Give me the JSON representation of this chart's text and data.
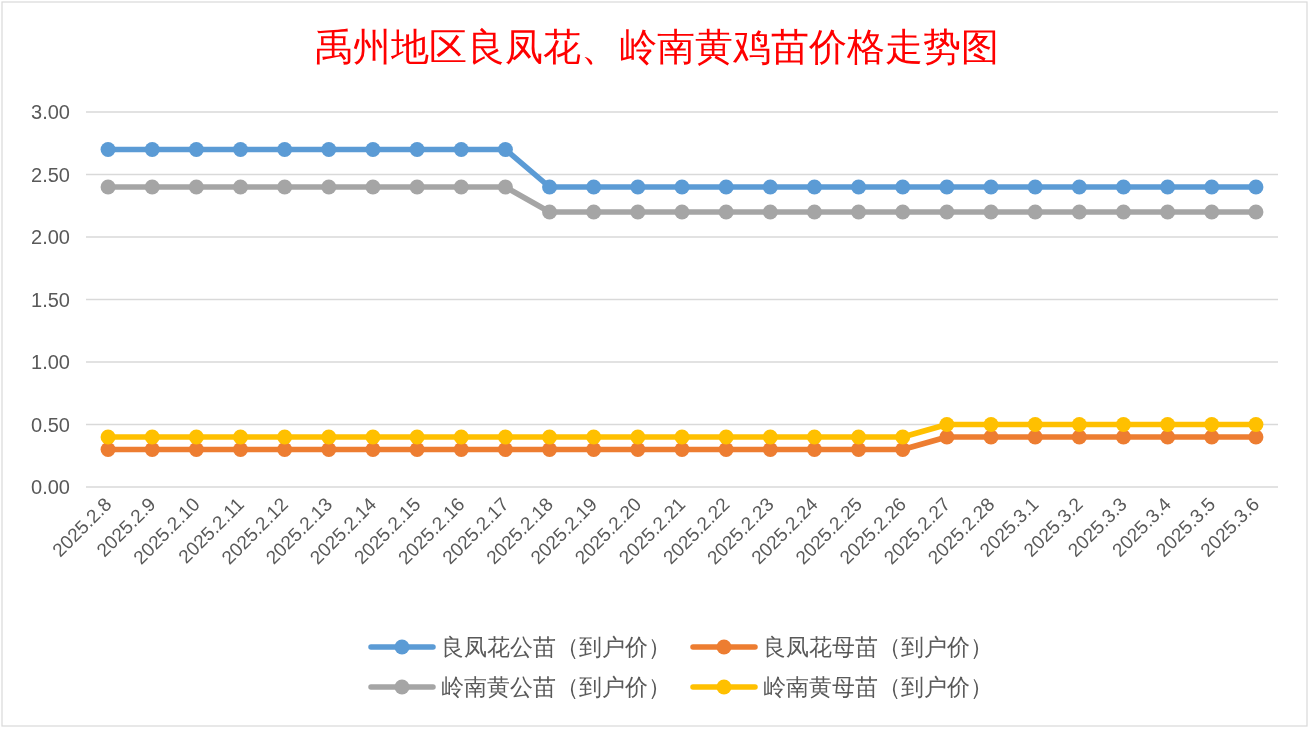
{
  "chart_data": {
    "type": "line",
    "title": "禹州地区良凤花、岭南黄鸡苗价格走势图",
    "categories": [
      "2025.2.8",
      "2025.2.9",
      "2025.2.10",
      "2025.2.11",
      "2025.2.12",
      "2025.2.13",
      "2025.2.14",
      "2025.2.15",
      "2025.2.16",
      "2025.2.17",
      "2025.2.18",
      "2025.2.19",
      "2025.2.20",
      "2025.2.21",
      "2025.2.22",
      "2025.2.23",
      "2025.2.24",
      "2025.2.25",
      "2025.2.26",
      "2025.2.27",
      "2025.2.28",
      "2025.3.1",
      "2025.3.2",
      "2025.3.3",
      "2025.3.4",
      "2025.3.5",
      "2025.3.6"
    ],
    "series": [
      {
        "name": "良凤花公苗（到户价）",
        "color": "#5b9bd5",
        "values": [
          2.7,
          2.7,
          2.7,
          2.7,
          2.7,
          2.7,
          2.7,
          2.7,
          2.7,
          2.7,
          2.4,
          2.4,
          2.4,
          2.4,
          2.4,
          2.4,
          2.4,
          2.4,
          2.4,
          2.4,
          2.4,
          2.4,
          2.4,
          2.4,
          2.4,
          2.4,
          2.4
        ]
      },
      {
        "name": "良凤花母苗（到户价）",
        "color": "#ed7d31",
        "values": [
          0.3,
          0.3,
          0.3,
          0.3,
          0.3,
          0.3,
          0.3,
          0.3,
          0.3,
          0.3,
          0.3,
          0.3,
          0.3,
          0.3,
          0.3,
          0.3,
          0.3,
          0.3,
          0.3,
          0.4,
          0.4,
          0.4,
          0.4,
          0.4,
          0.4,
          0.4,
          0.4
        ]
      },
      {
        "name": "岭南黄公苗（到户价）",
        "color": "#a5a5a5",
        "values": [
          2.4,
          2.4,
          2.4,
          2.4,
          2.4,
          2.4,
          2.4,
          2.4,
          2.4,
          2.4,
          2.2,
          2.2,
          2.2,
          2.2,
          2.2,
          2.2,
          2.2,
          2.2,
          2.2,
          2.2,
          2.2,
          2.2,
          2.2,
          2.2,
          2.2,
          2.2,
          2.2
        ]
      },
      {
        "name": "岭南黄母苗（到户价）",
        "color": "#ffc000",
        "values": [
          0.4,
          0.4,
          0.4,
          0.4,
          0.4,
          0.4,
          0.4,
          0.4,
          0.4,
          0.4,
          0.4,
          0.4,
          0.4,
          0.4,
          0.4,
          0.4,
          0.4,
          0.4,
          0.4,
          0.5,
          0.5,
          0.5,
          0.5,
          0.5,
          0.5,
          0.5,
          0.5
        ]
      }
    ],
    "ylim": [
      0,
      3
    ],
    "yticks": [
      {
        "value": 0,
        "label": "0.00"
      },
      {
        "value": 0.5,
        "label": "0.50"
      },
      {
        "value": 1,
        "label": "1.00"
      },
      {
        "value": 1.5,
        "label": "1.50"
      },
      {
        "value": 2,
        "label": "2.00"
      },
      {
        "value": 2.5,
        "label": "2.50"
      },
      {
        "value": 3,
        "label": "3.00"
      }
    ],
    "grid": "y",
    "legend": "bottom",
    "marker": "circle",
    "line_style": "solid"
  }
}
